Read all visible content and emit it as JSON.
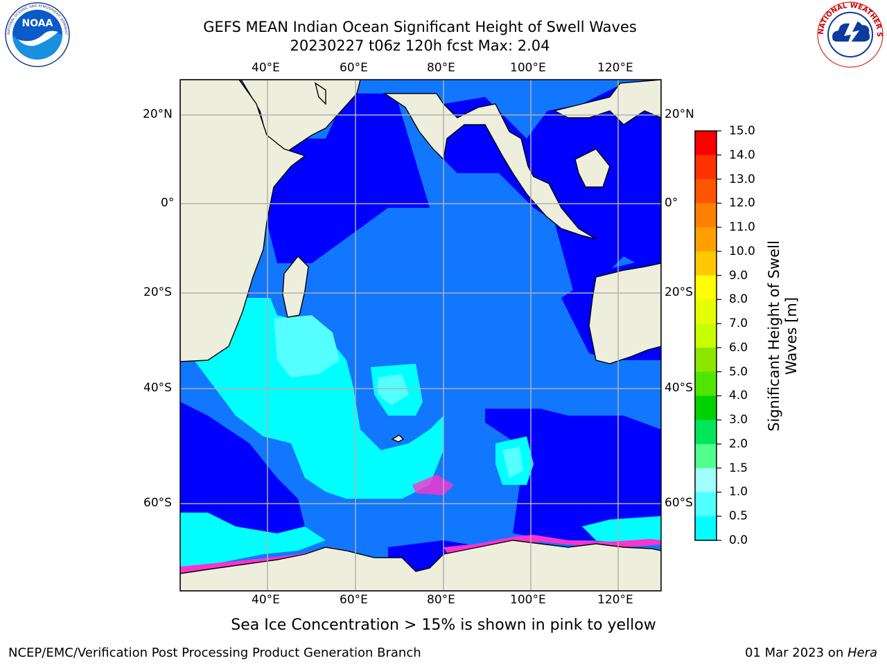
{
  "header": {
    "title_line1": "GEFS MEAN Indian Ocean Significant Height of Swell Waves",
    "title_line2": "20230227 t06z 120h fcst   Max: 2.04"
  },
  "logos": {
    "noaa_text": "NOAA",
    "noaa_ring_text": "NATIONAL OCEANIC AND ATMOSPHERIC ADMINISTRATION · U.S. DEPARTMENT OF COMMERCE",
    "nws_ring_text": "NATIONAL WEATHER SERVICE"
  },
  "axes": {
    "lon_labels": [
      "40°E",
      "60°E",
      "80°E",
      "100°E",
      "120°E"
    ],
    "lat_labels": [
      "20°N",
      "0°",
      "20°S",
      "40°S",
      "60°S"
    ]
  },
  "colorbar": {
    "label_line1": "Significant Height of Swell",
    "label_line2": "Waves [m]",
    "ticks": [
      "15.0",
      "14.0",
      "13.0",
      "12.0",
      "11.0",
      "10.0",
      "9.0",
      "8.0",
      "7.0",
      "6.0",
      "5.0",
      "4.0",
      "3.0",
      "2.0",
      "1.5",
      "1.0",
      "0.5",
      "0.0"
    ],
    "colors_top_to_bottom": [
      "#ff0000",
      "#ff3300",
      "#ff5500",
      "#ff8000",
      "#ffa000",
      "#ffc800",
      "#ffff00",
      "#e6ff00",
      "#c8ff00",
      "#8ce600",
      "#50e600",
      "#00d200",
      "#00e65a",
      "#50ff8c",
      "#a0ffff",
      "#50ffff",
      "#00ffff",
      "#0096ff",
      "#0000ff"
    ]
  },
  "notes": {
    "sea_ice": "Sea Ice Concentration > 15% is shown in pink to yellow",
    "footer_left": "NCEP/EMC/Verification Post Processing Product Generation Branch",
    "footer_date": "01 Mar 2023 on ",
    "footer_host": "Hera"
  },
  "colors": {
    "land": "#eeeedd",
    "swell_0_05": "#0000ff",
    "swell_05_10": "#1177ff",
    "swell_10_15": "#00ffff",
    "swell_15_20": "#55ffff",
    "sea_ice": "#ff33cc"
  }
}
